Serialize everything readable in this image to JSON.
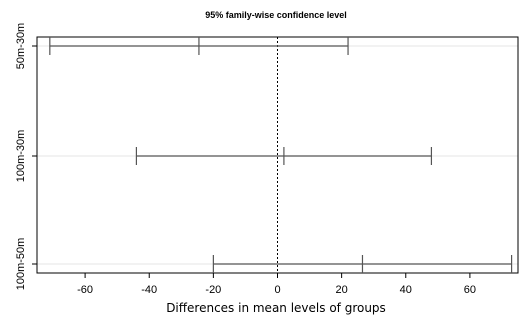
{
  "chart_data": {
    "type": "interval",
    "title": "95% family-wise confidence level",
    "xlabel": "Differences in mean levels of groups",
    "ylabel": "",
    "xlim": [
      -75,
      75
    ],
    "xticks": [
      -60,
      -40,
      -20,
      0,
      20,
      40,
      60
    ],
    "reference_line": 0,
    "comparisons": [
      {
        "label": "50m-30m",
        "diff": -24.5,
        "lwr": -71.0,
        "upr": 22.0
      },
      {
        "label": "100m-30m",
        "diff": 2.0,
        "lwr": -44.0,
        "upr": 48.0
      },
      {
        "label": "100m-50m",
        "diff": 26.5,
        "lwr": -20.0,
        "upr": 73.0
      }
    ],
    "grid": true
  }
}
